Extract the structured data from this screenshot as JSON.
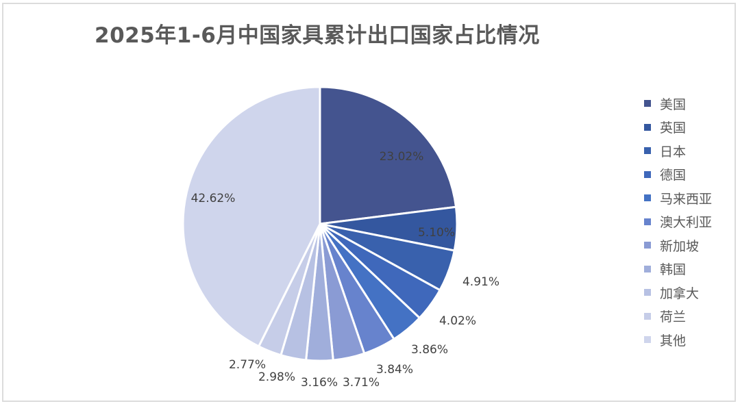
{
  "chart_data": {
    "type": "pie",
    "title": "2025年1-6月中国家具累计出口国家占比情况",
    "categories": [
      "美国",
      "英国",
      "日本",
      "德国",
      "马来西亚",
      "澳大利亚",
      "新加坡",
      "韩国",
      "加拿大",
      "荷兰",
      "其他"
    ],
    "values": [
      23.02,
      5.1,
      4.91,
      4.02,
      3.86,
      3.84,
      3.71,
      3.16,
      2.98,
      2.77,
      42.62
    ],
    "labels": [
      "23.02%",
      "5.10%",
      "4.91%",
      "4.02%",
      "3.86%",
      "3.84%",
      "3.71%",
      "3.16%",
      "2.98%",
      "2.77%",
      "42.62%"
    ],
    "colors": [
      "#44548f",
      "#34579f",
      "#3961ad",
      "#3f68bb",
      "#4472c4",
      "#6783cd",
      "#8a9bd4",
      "#a0aedb",
      "#b7c1e3",
      "#c6cde8",
      "#cfd5ec"
    ],
    "legend_position": "right",
    "start_angle_deg": 0,
    "direction": "clockwise",
    "units": "%"
  }
}
